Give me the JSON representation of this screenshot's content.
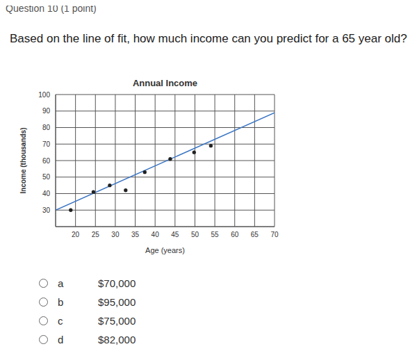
{
  "header": "Question 10 (1 point)",
  "question": "Based on the line of fit, how much income can you predict for a 65 year old?",
  "chart_data": {
    "type": "scatter",
    "title": "Annual Income",
    "x_label": "Age (years)",
    "y_label": "Income (thousands)",
    "xlim": [
      15,
      70
    ],
    "ylim": [
      20,
      100
    ],
    "xticks": [
      20,
      25,
      30,
      35,
      40,
      45,
      50,
      55,
      60,
      65,
      70
    ],
    "yticks": [
      30,
      40,
      50,
      60,
      70,
      80,
      90,
      100
    ],
    "grid": true,
    "series": [
      {
        "type": "scatter",
        "color": "#222222",
        "marker": "circle",
        "x": [
          18.8,
          24.5,
          28.6,
          32.6,
          37.4,
          43.8,
          49.8,
          54
        ],
        "values": [
          30,
          41,
          45,
          42,
          53,
          61,
          65,
          69
        ]
      },
      {
        "type": "line",
        "color": "#3a75c4",
        "line_style": "solid",
        "x": [
          15,
          70
        ],
        "values": [
          30,
          89
        ]
      }
    ]
  },
  "options": [
    {
      "letter": "a",
      "text": "$70,000"
    },
    {
      "letter": "b",
      "text": "$95,000"
    },
    {
      "letter": "c",
      "text": "$75,000"
    },
    {
      "letter": "d",
      "text": "$82,000"
    }
  ]
}
